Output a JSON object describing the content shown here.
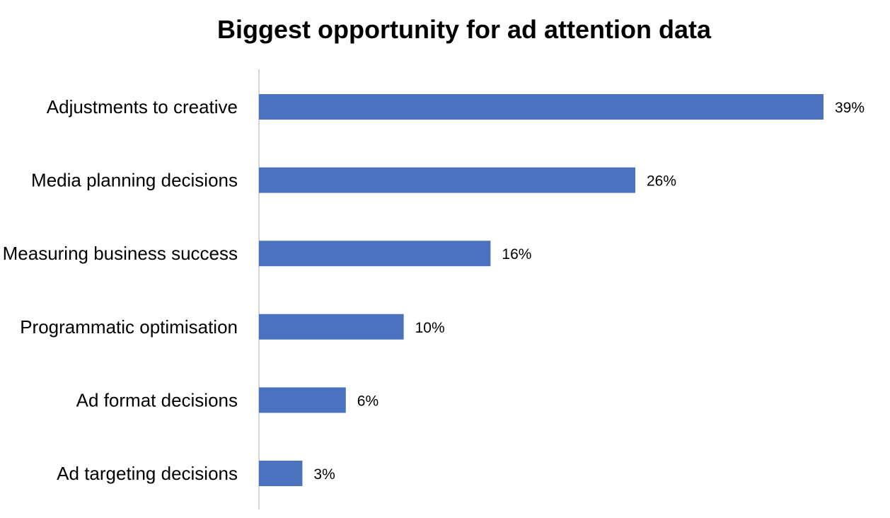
{
  "chart_data": {
    "type": "bar",
    "orientation": "horizontal",
    "title": "Biggest opportunity for ad attention data",
    "xlabel": "",
    "ylabel": "",
    "categories": [
      "Adjustments to creative",
      "Media planning decisions",
      "Measuring business success",
      "Programmatic optimisation",
      "Ad format decisions",
      "Ad targeting decisions"
    ],
    "values": [
      39,
      26,
      16,
      10,
      6,
      3
    ],
    "value_labels": [
      "39%",
      "26%",
      "16%",
      "10%",
      "6%",
      "3%"
    ],
    "unit": "%",
    "xlim": [
      0,
      39
    ],
    "grid": false,
    "legend": "none",
    "bar_color": "#4A72BF"
  }
}
